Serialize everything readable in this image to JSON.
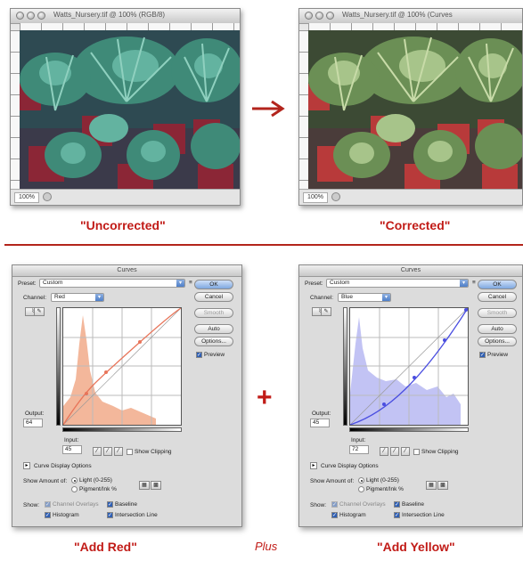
{
  "left_window": {
    "title": "Watts_Nursery.tif @ 100% (RGB/8)",
    "zoom": "100%"
  },
  "right_window": {
    "title": "Watts_Nursery.tif @ 100% (Curves",
    "zoom": "100%"
  },
  "arrow_icon": "right-arrow-icon",
  "caption_uncorrected": "\"Uncorrected\"",
  "caption_corrected": "\"Corrected\"",
  "plus_sign": "+",
  "plus_word": "Plus",
  "caption_add_red": "\"Add Red\"",
  "caption_add_yellow": "\"Add Yellow\"",
  "colors": {
    "accent_red": "#c11b17",
    "red_histogram": "#f3b79b",
    "red_curve": "#e8755a",
    "blue_histogram": "#c2c3f4",
    "blue_curve": "#4a4ee0"
  },
  "curves_left": {
    "title": "Curves",
    "preset_label": "Preset:",
    "preset_value": "Custom",
    "channel_label": "Channel:",
    "channel_value": "Red",
    "ok": "OK",
    "cancel": "Cancel",
    "smooth": "Smooth",
    "auto": "Auto",
    "options": "Options...",
    "preview": "Preview",
    "output_label": "Output:",
    "output_value": "64",
    "input_label": "Input:",
    "input_value": "45",
    "show_clipping": "Show Clipping",
    "curve_display_options": "Curve Display Options",
    "show_amount_label": "Show Amount of:",
    "light_option": "Light (0-255)",
    "pigment_option": "Pigment/Ink %",
    "show_label": "Show:",
    "channel_overlays": "Channel Overlays",
    "baseline": "Baseline",
    "histogram": "Histogram",
    "intersection_line": "Intersection Line"
  },
  "curves_right": {
    "title": "Curves",
    "preset_label": "Preset:",
    "preset_value": "Custom",
    "channel_label": "Channel:",
    "channel_value": "Blue",
    "ok": "OK",
    "cancel": "Cancel",
    "smooth": "Smooth",
    "auto": "Auto",
    "options": "Options...",
    "preview": "Preview",
    "output_label": "Output:",
    "output_value": "45",
    "input_label": "Input:",
    "input_value": "72",
    "show_clipping": "Show Clipping",
    "curve_display_options": "Curve Display Options",
    "show_amount_label": "Show Amount of:",
    "light_option": "Light (0-255)",
    "pigment_option": "Pigment/Ink %",
    "show_label": "Show:",
    "channel_overlays": "Channel Overlays",
    "baseline": "Baseline",
    "histogram": "Histogram",
    "intersection_line": "Intersection Line"
  }
}
